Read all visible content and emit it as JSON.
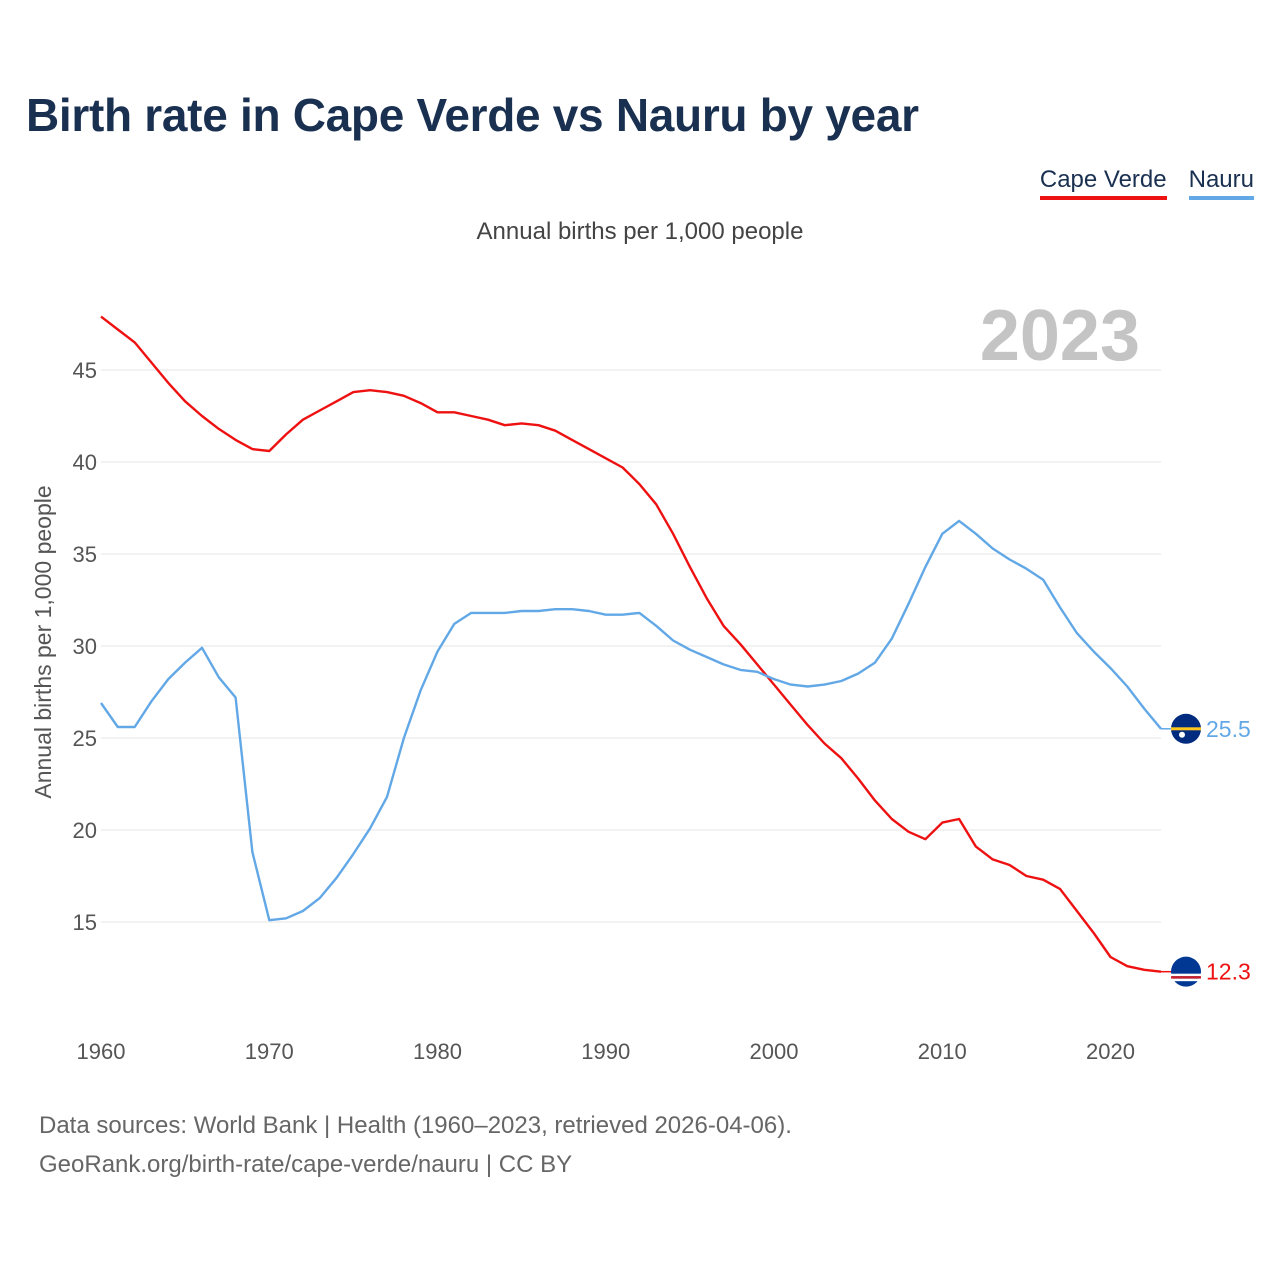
{
  "title": "Birth rate in Cape Verde vs Nauru by year",
  "subtitle": "Annual births per 1,000 people",
  "year_watermark": "2023",
  "footer": {
    "line1": "Data sources: World Bank | Health (1960–2023, retrieved 2026-04-06).",
    "line2": "GeoRank.org/birth-rate/cape-verde/nauru | CC BY"
  },
  "colors": {
    "cape_verde": "#ee1111",
    "nauru": "#62a8e6",
    "title": "#1a3050",
    "grid": "#e6e6e6",
    "watermark": "#c4c4c4",
    "cv_flag": "#003893",
    "nauru_flag": "#002b7f",
    "flag_yellow": "#ffc61e"
  },
  "chart_data": {
    "type": "line",
    "title": "Birth rate in Cape Verde vs Nauru by year",
    "xlabel": "",
    "ylabel": "Annual births per 1,000 people",
    "xlim": [
      1960,
      2023
    ],
    "ylim": [
      10,
      48
    ],
    "xticks": [
      1960,
      1970,
      1980,
      1990,
      2000,
      2010,
      2020
    ],
    "yticks": [
      15,
      20,
      25,
      30,
      35,
      40,
      45
    ],
    "x": [
      1960,
      1961,
      1962,
      1963,
      1964,
      1965,
      1966,
      1967,
      1968,
      1969,
      1970,
      1971,
      1972,
      1973,
      1974,
      1975,
      1976,
      1977,
      1978,
      1979,
      1980,
      1981,
      1982,
      1983,
      1984,
      1985,
      1986,
      1987,
      1988,
      1989,
      1990,
      1991,
      1992,
      1993,
      1994,
      1995,
      1996,
      1997,
      1998,
      1999,
      2000,
      2001,
      2002,
      2003,
      2004,
      2005,
      2006,
      2007,
      2008,
      2009,
      2010,
      2011,
      2012,
      2013,
      2014,
      2015,
      2016,
      2017,
      2018,
      2019,
      2020,
      2021,
      2022,
      2023
    ],
    "series": [
      {
        "name": "Cape Verde",
        "color_key": "cape_verde",
        "end_label": "12.3",
        "values": [
          47.9,
          47.2,
          46.5,
          45.4,
          44.3,
          43.3,
          42.5,
          41.8,
          41.2,
          40.7,
          40.6,
          41.5,
          42.3,
          42.8,
          43.3,
          43.8,
          43.9,
          43.8,
          43.6,
          43.2,
          42.7,
          42.7,
          42.5,
          42.3,
          42.0,
          42.1,
          42.0,
          41.7,
          41.2,
          40.7,
          40.2,
          39.7,
          38.8,
          37.7,
          36.1,
          34.3,
          32.6,
          31.1,
          30.1,
          29.0,
          27.9,
          26.8,
          25.7,
          24.7,
          23.9,
          22.8,
          21.6,
          20.6,
          19.9,
          19.5,
          20.4,
          20.6,
          19.1,
          18.4,
          18.1,
          17.5,
          17.3,
          16.8,
          15.6,
          14.4,
          13.1,
          12.6,
          12.4,
          12.3
        ]
      },
      {
        "name": "Nauru",
        "color_key": "nauru",
        "end_label": "25.5",
        "values": [
          26.9,
          25.6,
          25.6,
          27.0,
          28.2,
          29.1,
          29.9,
          28.3,
          27.2,
          18.8,
          15.1,
          15.2,
          15.6,
          16.3,
          17.4,
          18.7,
          20.1,
          21.8,
          25.0,
          27.6,
          29.7,
          31.2,
          31.8,
          31.8,
          31.8,
          31.9,
          31.9,
          32.0,
          32.0,
          31.9,
          31.7,
          31.7,
          31.8,
          31.1,
          30.3,
          29.8,
          29.4,
          29.0,
          28.7,
          28.6,
          28.2,
          27.9,
          27.8,
          27.9,
          28.1,
          28.5,
          29.1,
          30.4,
          32.3,
          34.3,
          36.1,
          36.8,
          36.1,
          35.3,
          34.7,
          34.2,
          33.6,
          32.1,
          30.7,
          29.7,
          28.8,
          27.8,
          26.6,
          25.5
        ]
      }
    ]
  }
}
